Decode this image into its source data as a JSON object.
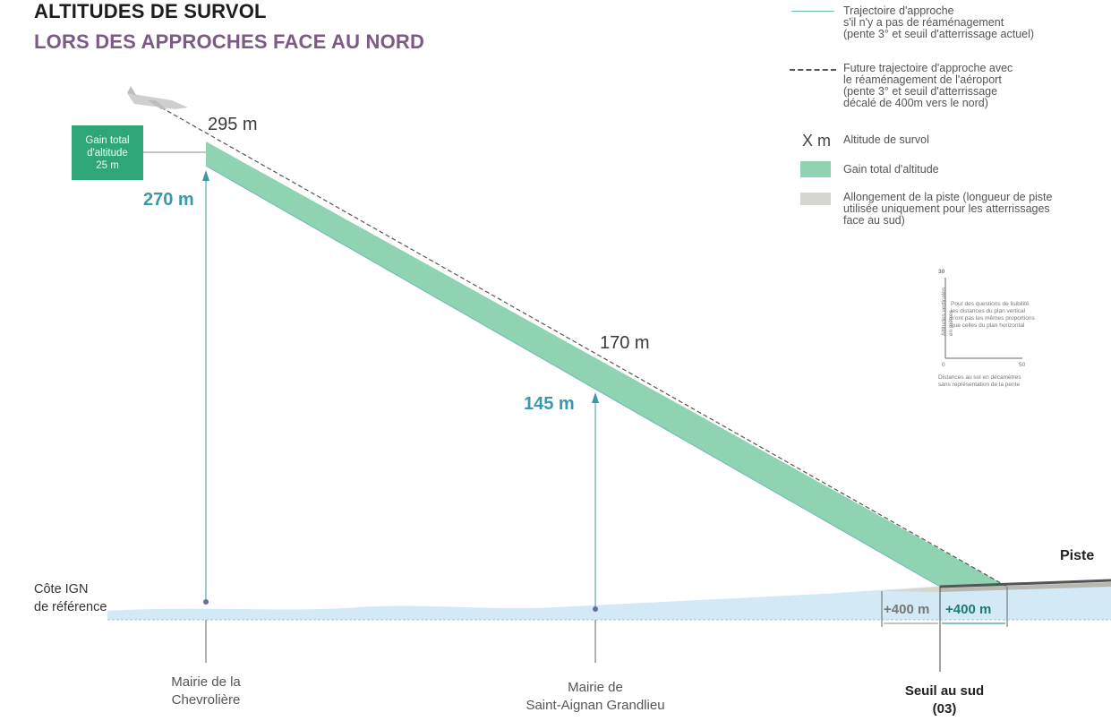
{
  "title": {
    "line1": "ALTITUDES DE SURVOL",
    "line2": "LORS DES APPROCHES FACE AU NORD"
  },
  "legend": {
    "current_path": "Trajectoire d'approche\ns'il n'y a pas de réaménagement\n(pente 3° et seuil d'atterrissage actuel)",
    "future_path": "Future trajectoire d'approche avec\nle réaménagement de l'aéroport\n(pente 3° et seuil d'atterrissage\ndécalé de 400m vers le nord)",
    "altitude_symbol": "X m",
    "altitude": "Altitude de survol",
    "gain": "Gain total d'altitude",
    "runway_extension": "Allongement de la piste (longueur de piste\nutilisée uniquement pour les atterrissages\nface au sud)"
  },
  "colors": {
    "gain_band": "#8fd3b3",
    "gain_box": "#2fa678",
    "ground": "#cfe6f4",
    "accent_blue": "#3a98a8",
    "subtitle": "#7b5a86"
  },
  "diagram": {
    "gain_box": "Gain total\nd'altitude\n25 m",
    "points": [
      {
        "future_altitude": "295 m",
        "current_altitude": "270 m",
        "town": "Mairie de la\nChevrolière"
      },
      {
        "future_altitude": "170 m",
        "current_altitude": "145 m",
        "town": "Mairie de\nSaint-Aignan Grandlieu"
      }
    ],
    "ground_reference": "Côte IGN\nde référence",
    "runway": "Piste",
    "threshold": "Seuil au sud\n(03)",
    "extension_left": "+400 m",
    "extension_right": "+400 m"
  },
  "inset": {
    "y_max": "30",
    "x_min": "0",
    "x_max": "50",
    "y_caption": "Altitudes verticales\nen mètres",
    "note": "Pour des questions de lisibilité\nles distances du plan vertical\nn'ont pas les mêmes proportions\nque celles du plan horizontal",
    "x_caption": "Distances au sol en décamètres\nsans représentation de la pente"
  }
}
